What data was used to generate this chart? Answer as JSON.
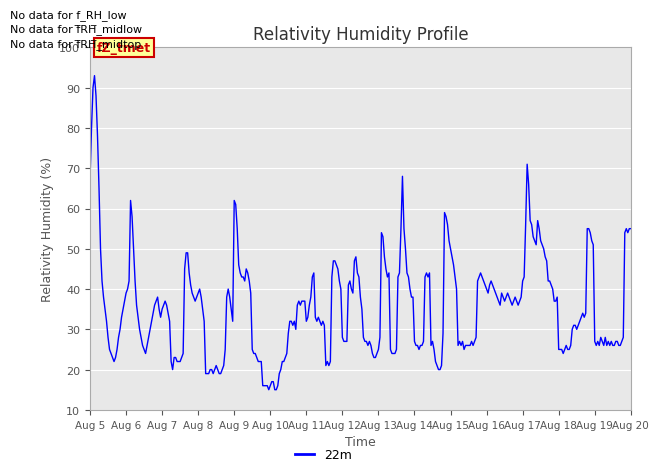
{
  "title": "Relativity Humidity Profile",
  "ylabel": "Relativity Humidity (%)",
  "xlabel": "Time",
  "legend_label": "22m",
  "ylim": [
    10,
    100
  ],
  "line_color": "#0000ff",
  "plot_bg": "#e8e8e8",
  "no_data_lines": [
    "No data for f_RH_low",
    "No data for f̅RH̅_midlow",
    "No data for f̅RH̅_midtop"
  ],
  "legend_box_color": "#ffff99",
  "legend_box_border": "#cc0000",
  "legend_text_color": "#cc0000",
  "legend_box_label": "fZ_tmet",
  "x_tick_labels": [
    "Aug 5",
    "Aug 6",
    "Aug 7",
    "Aug 8",
    "Aug 9",
    "Aug 10",
    "Aug 11",
    "Aug 12",
    "Aug 13",
    "Aug 14",
    "Aug 15",
    "Aug 16",
    "Aug 17",
    "Aug 18",
    "Aug 19",
    "Aug 20"
  ],
  "x_ticks": [
    0,
    24,
    48,
    72,
    96,
    120,
    144,
    168,
    192,
    216,
    240,
    264,
    288,
    312,
    336,
    360
  ],
  "time_hours": [
    0,
    1,
    2,
    3,
    4,
    5,
    6,
    7,
    8,
    9,
    10,
    11,
    12,
    13,
    14,
    15,
    16,
    17,
    18,
    19,
    20,
    21,
    22,
    23,
    24,
    25,
    26,
    27,
    28,
    29,
    30,
    31,
    32,
    33,
    34,
    35,
    36,
    37,
    38,
    39,
    40,
    41,
    42,
    43,
    44,
    45,
    46,
    47,
    48,
    49,
    50,
    51,
    52,
    53,
    54,
    55,
    56,
    57,
    58,
    59,
    60,
    61,
    62,
    63,
    64,
    65,
    66,
    67,
    68,
    69,
    70,
    71,
    72,
    73,
    74,
    75,
    76,
    77,
    78,
    79,
    80,
    81,
    82,
    83,
    84,
    85,
    86,
    87,
    88,
    89,
    90,
    91,
    92,
    93,
    94,
    95,
    96,
    97,
    98,
    99,
    100,
    101,
    102,
    103,
    104,
    105,
    106,
    107,
    108,
    109,
    110,
    111,
    112,
    113,
    114,
    115,
    116,
    117,
    118,
    119,
    120,
    121,
    122,
    123,
    124,
    125,
    126,
    127,
    128,
    129,
    130,
    131,
    132,
    133,
    134,
    135,
    136,
    137,
    138,
    139,
    140,
    141,
    142,
    143,
    144,
    145,
    146,
    147,
    148,
    149,
    150,
    151,
    152,
    153,
    154,
    155,
    156,
    157,
    158,
    159,
    160,
    161,
    162,
    163,
    164,
    165,
    166,
    167,
    168,
    169,
    170,
    171,
    172,
    173,
    174,
    175,
    176,
    177,
    178,
    179,
    180,
    181,
    182,
    183,
    184,
    185,
    186,
    187,
    188,
    189,
    190,
    191,
    192,
    193,
    194,
    195,
    196,
    197,
    198,
    199,
    200,
    201,
    202,
    203,
    204,
    205,
    206,
    207,
    208,
    209,
    210,
    211,
    212,
    213,
    214,
    215,
    216,
    217,
    218,
    219,
    220,
    221,
    222,
    223,
    224,
    225,
    226,
    227,
    228,
    229,
    230,
    231,
    232,
    233,
    234,
    235,
    236,
    237,
    238,
    239,
    240,
    241,
    242,
    243,
    244,
    245,
    246,
    247,
    248,
    249,
    250,
    251,
    252,
    253,
    254,
    255,
    256,
    257,
    258,
    259,
    260,
    261,
    262,
    263,
    264,
    265,
    266,
    267,
    268,
    269,
    270,
    271,
    272,
    273,
    274,
    275,
    276,
    277,
    278,
    279,
    280,
    281,
    282,
    283,
    284,
    285,
    286,
    287,
    288,
    289,
    290,
    291,
    292,
    293,
    294,
    295,
    296,
    297,
    298,
    299,
    300,
    301,
    302,
    303,
    304,
    305,
    306,
    307,
    308,
    309,
    310,
    311,
    312,
    313,
    314,
    315,
    316,
    317,
    318,
    319,
    320,
    321,
    322,
    323,
    324,
    325,
    326,
    327,
    328,
    329,
    330,
    331,
    332,
    333,
    334,
    335,
    336,
    337,
    338,
    339,
    340,
    341,
    342,
    343,
    344,
    345,
    346,
    347,
    348,
    349,
    350,
    351,
    352,
    353,
    354,
    355,
    356,
    357,
    358,
    359,
    360
  ],
  "rh_values": [
    67,
    80,
    90,
    93,
    88,
    78,
    65,
    50,
    42,
    38,
    35,
    32,
    28,
    25,
    24,
    23,
    22,
    23,
    25,
    28,
    30,
    33,
    35,
    37,
    39,
    40,
    42,
    62,
    58,
    50,
    42,
    36,
    33,
    30,
    28,
    26,
    25,
    24,
    26,
    28,
    30,
    32,
    34,
    36,
    37,
    38,
    35,
    33,
    35,
    36,
    37,
    36,
    34,
    32,
    22,
    20,
    23,
    23,
    22,
    22,
    22,
    23,
    24,
    45,
    49,
    49,
    44,
    41,
    39,
    38,
    37,
    38,
    39,
    40,
    38,
    35,
    32,
    19,
    19,
    19,
    20,
    20,
    19,
    20,
    21,
    20,
    19,
    19,
    20,
    21,
    25,
    38,
    40,
    38,
    35,
    32,
    62,
    61,
    55,
    46,
    44,
    43,
    43,
    42,
    45,
    44,
    42,
    39,
    25,
    24,
    24,
    23,
    22,
    22,
    22,
    16,
    16,
    16,
    16,
    15,
    16,
    17,
    17,
    15,
    15,
    16,
    19,
    20,
    22,
    22,
    23,
    24,
    29,
    32,
    32,
    31,
    32,
    30,
    36,
    37,
    36,
    37,
    37,
    37,
    32,
    33,
    36,
    38,
    43,
    44,
    33,
    32,
    33,
    32,
    31,
    32,
    31,
    21,
    22,
    21,
    22,
    43,
    47,
    47,
    46,
    45,
    42,
    40,
    28,
    27,
    27,
    27,
    41,
    42,
    40,
    39,
    47,
    48,
    44,
    43,
    38,
    35,
    28,
    27,
    27,
    26,
    27,
    26,
    24,
    23,
    23,
    24,
    25,
    28,
    54,
    53,
    48,
    45,
    43,
    44,
    25,
    24,
    24,
    24,
    25,
    43,
    44,
    55,
    68,
    55,
    50,
    44,
    43,
    40,
    38,
    38,
    27,
    26,
    26,
    25,
    26,
    26,
    27,
    43,
    44,
    43,
    44,
    26,
    27,
    25,
    22,
    21,
    20,
    20,
    21,
    29,
    59,
    58,
    56,
    52,
    50,
    48,
    46,
    43,
    40,
    26,
    27,
    26,
    27,
    25,
    26,
    26,
    26,
    26,
    27,
    26,
    27,
    28,
    42,
    43,
    44,
    43,
    42,
    41,
    40,
    39,
    41,
    42,
    41,
    40,
    39,
    38,
    37,
    36,
    39,
    38,
    37,
    38,
    39,
    38,
    37,
    36,
    37,
    38,
    37,
    36,
    37,
    38,
    42,
    43,
    56,
    71,
    66,
    57,
    56,
    53,
    52,
    51,
    57,
    55,
    52,
    51,
    50,
    48,
    47,
    42,
    42,
    41,
    40,
    37,
    37,
    38,
    25,
    25,
    25,
    24,
    25,
    26,
    25,
    25,
    26,
    30,
    31,
    31,
    30,
    31,
    32,
    33,
    34,
    33,
    34,
    55,
    55,
    54,
    52,
    51,
    27,
    26,
    27,
    26,
    28,
    27,
    26,
    28,
    26,
    27,
    26,
    27,
    26,
    26,
    27,
    27,
    26,
    26,
    27,
    28,
    54,
    55,
    54,
    55,
    55
  ]
}
